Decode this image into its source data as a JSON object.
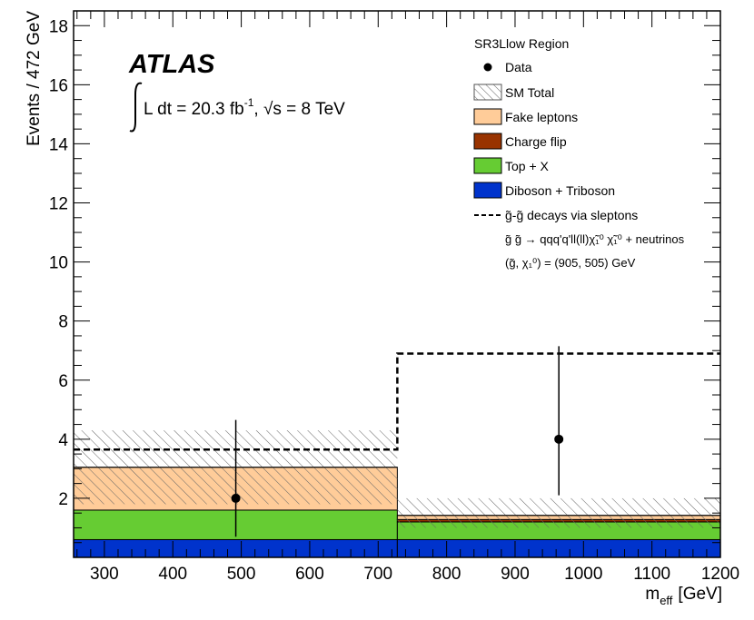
{
  "chart_data": {
    "type": "histogram",
    "xlabel": "m",
    "xlabel_sub": "eff",
    "xlabel_unit": "[GeV]",
    "ylabel": "Events / 472 GeV",
    "xlim": [
      255,
      1200
    ],
    "ylim": [
      0,
      18.5
    ],
    "x_ticks": [
      300,
      400,
      500,
      600,
      700,
      800,
      900,
      1000,
      1100,
      1200
    ],
    "y_ticks": [
      2,
      4,
      6,
      8,
      10,
      12,
      14,
      16,
      18
    ],
    "bin_edges": [
      255,
      728,
      1200
    ],
    "stack": [
      {
        "name": "Diboson + Triboson",
        "color": "#0033cc",
        "values": [
          0.6,
          0.6
        ]
      },
      {
        "name": "Top + X",
        "color": "#66cc33",
        "values": [
          1.0,
          0.6
        ]
      },
      {
        "name": "Charge flip",
        "color": "#993300",
        "values": [
          0.0,
          0.08
        ]
      },
      {
        "name": "Fake leptons",
        "color": "#ffcc99",
        "values": [
          1.45,
          0.14
        ]
      }
    ],
    "sm_total": {
      "name": "SM Total",
      "values": [
        3.05,
        1.42
      ],
      "band_low": [
        1.8,
        1.0
      ],
      "band_high": [
        4.3,
        2.0
      ]
    },
    "data": {
      "name": "Data",
      "x": [
        492,
        964
      ],
      "y": [
        2,
        4
      ],
      "err_low": [
        1.3,
        1.9
      ],
      "err_high": [
        2.65,
        3.15
      ]
    },
    "signal": {
      "name": "g̃-g̃ decays via sleptons",
      "values": [
        3.65,
        6.9
      ]
    },
    "legend": {
      "header": "SR3Llow Region",
      "signal_line1": "g̃-g̃ decays via sleptons",
      "signal_line2": "g̃ g̃ → qqq'q'll(ll)χ̃₁⁰ χ̃₁⁰ + neutrinos",
      "signal_line3": "(g̃, χ₁⁰) = (905, 505) GeV"
    },
    "atlas_label": "ATLAS",
    "lumi_text": "L dt = 20.3 fb",
    "lumi_exp": "-1",
    "energy_text": ", √s = 8 TeV"
  }
}
